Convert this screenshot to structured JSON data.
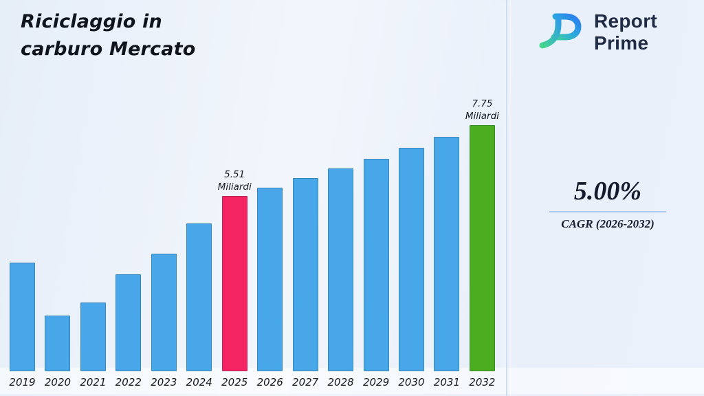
{
  "header": {
    "title_line1": "Riciclaggio in",
    "title_line2": "carburo Mercato"
  },
  "logo": {
    "name_line1": "Report",
    "name_line2": "Prime"
  },
  "right_panel": {
    "cagr_value": "5.00%",
    "cagr_label": "CAGR (2026-2032)"
  },
  "colors": {
    "bar_default": "#47a7e8",
    "bar_highlight_2025": "#f42462",
    "bar_highlight_2032": "#4bae20",
    "divider": "#cddcf0",
    "underline": "#a9cbf2",
    "text_dark": "#10151d",
    "logo_navy": "#1f2a44"
  },
  "chart_data": {
    "type": "bar",
    "title": "Riciclaggio in carburo Mercato",
    "unit": "Miliardi",
    "xlabel": "",
    "ylabel": "",
    "ylim": [
      0,
      8
    ],
    "grid": false,
    "legend": "none",
    "categories": [
      "2019",
      "2020",
      "2021",
      "2022",
      "2023",
      "2024",
      "2025",
      "2026",
      "2027",
      "2028",
      "2029",
      "2030",
      "2031",
      "2032"
    ],
    "values": [
      3.43,
      1.75,
      2.16,
      3.06,
      3.71,
      4.65,
      5.51,
      5.79,
      6.08,
      6.38,
      6.7,
      7.04,
      7.39,
      7.75
    ],
    "labeled_values": {
      "2025": 5.51,
      "2032": 7.75
    },
    "annotations": [
      {
        "category": "2025",
        "lines": [
          "5.51",
          "Miliardi"
        ]
      },
      {
        "category": "2032",
        "lines": [
          "7.75",
          "Miliardi"
        ]
      }
    ],
    "bar_colors": {
      "default": "#47a7e8",
      "2025": "#f42462",
      "2032": "#4bae20"
    }
  }
}
